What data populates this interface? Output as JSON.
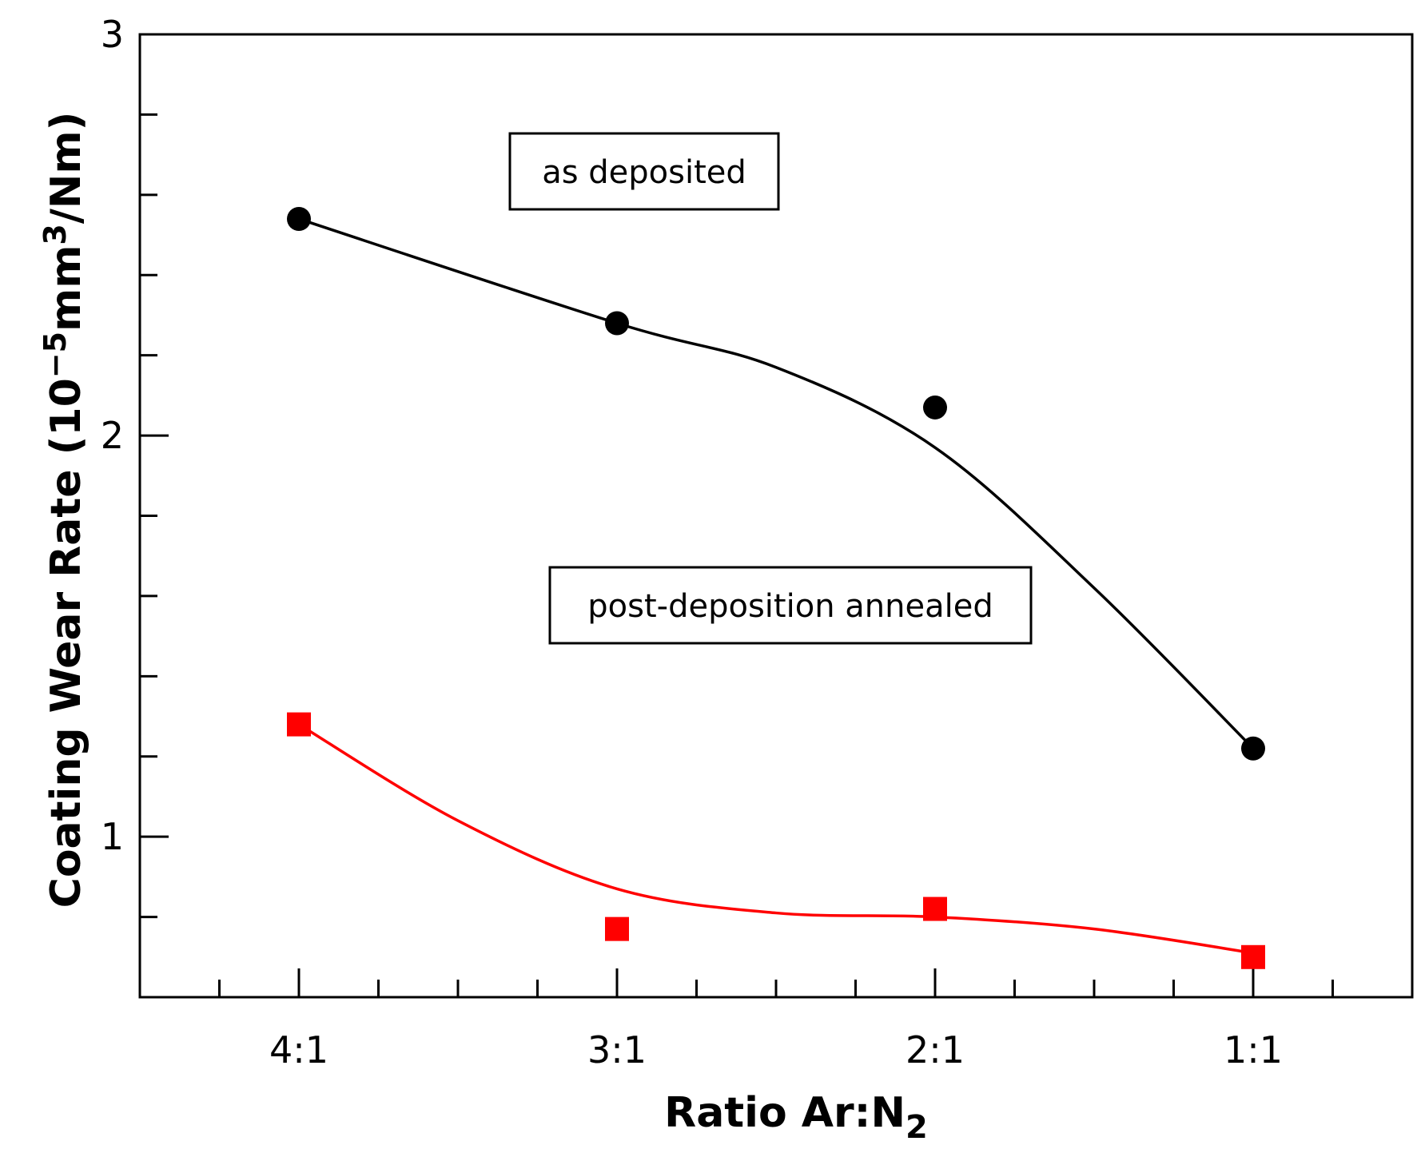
{
  "chart_data": {
    "type": "line",
    "title": "",
    "xlabel": "Ratio Ar:N",
    "xlabel_sub": "2",
    "ylabel_parts": [
      "Coating Wear Rate (10",
      "−5",
      "mm",
      "3",
      "/Nm)"
    ],
    "categories": [
      "4:1",
      "3:1",
      "2:1",
      "1:1"
    ],
    "ylim": [
      0.6,
      3
    ],
    "yticks": [
      1,
      2,
      3
    ],
    "ytick_labels": [
      "1",
      "2",
      "3"
    ],
    "y_minor_step": 0.2,
    "x_minor_per_interval": 4,
    "x_range": [
      -0.5,
      3.5
    ],
    "series": [
      {
        "name": "as deposited",
        "marker": "circle",
        "color": "#000000",
        "values": [
          2.54,
          2.28,
          2.07,
          1.22
        ],
        "fit": [
          [
            0,
            2.54
          ],
          [
            1,
            2.28
          ],
          [
            1.5,
            2.17
          ],
          [
            2,
            1.97
          ],
          [
            2.5,
            1.62
          ],
          [
            3,
            1.22
          ]
        ]
      },
      {
        "name": "post-deposition annealed",
        "marker": "square",
        "color": "#ff0000",
        "values": [
          1.28,
          0.77,
          0.82,
          0.7
        ],
        "fit": [
          [
            0,
            1.28
          ],
          [
            0.5,
            1.04
          ],
          [
            1,
            0.87
          ],
          [
            1.5,
            0.81
          ],
          [
            2,
            0.8
          ],
          [
            2.5,
            0.77
          ],
          [
            3,
            0.71
          ]
        ]
      }
    ],
    "annotations": [
      "as deposited",
      "post-deposition annealed"
    ]
  }
}
